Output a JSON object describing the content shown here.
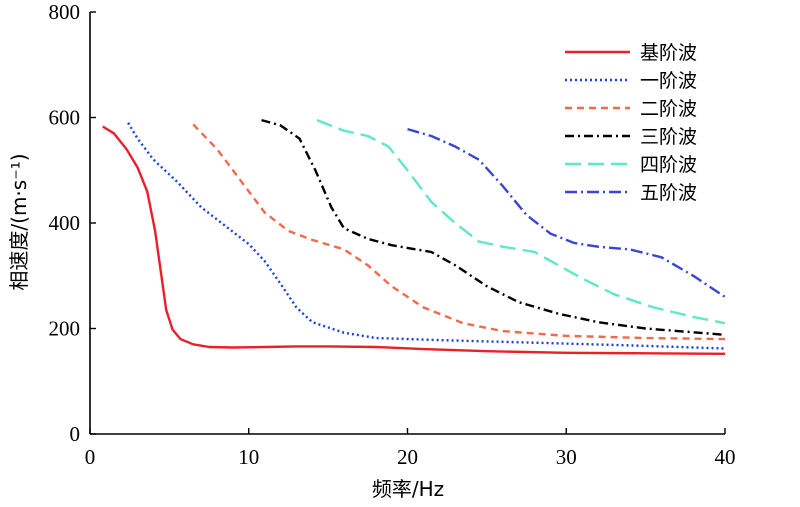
{
  "chart_data": {
    "type": "line",
    "xlabel": "频率/Hz",
    "ylabel": "相速度/(m·s⁻¹)",
    "xlim": [
      0,
      40
    ],
    "ylim": [
      0,
      800
    ],
    "xticks": [
      0,
      10,
      20,
      30,
      40
    ],
    "yticks": [
      0,
      200,
      400,
      600,
      800
    ],
    "grid": false,
    "legend_position": "top-right",
    "series": [
      {
        "name": "基阶波",
        "color": "#e8202a",
        "dash": "solid",
        "points": [
          [
            0.8,
            583
          ],
          [
            1.5,
            570
          ],
          [
            2.3,
            540
          ],
          [
            3.0,
            505
          ],
          [
            3.6,
            460
          ],
          [
            4.1,
            385
          ],
          [
            4.5,
            300
          ],
          [
            4.8,
            235
          ],
          [
            5.2,
            198
          ],
          [
            5.7,
            180
          ],
          [
            6.5,
            170
          ],
          [
            7.5,
            165
          ],
          [
            9,
            164
          ],
          [
            11,
            165
          ],
          [
            13,
            166
          ],
          [
            15,
            166
          ],
          [
            18,
            165
          ],
          [
            21,
            161
          ],
          [
            25,
            157
          ],
          [
            30,
            154
          ],
          [
            35,
            153
          ],
          [
            40,
            152
          ]
        ]
      },
      {
        "name": "一阶波",
        "color": "#1a3fe0",
        "dash": "2,3",
        "points": [
          [
            2.4,
            590
          ],
          [
            3.0,
            560
          ],
          [
            4.0,
            520
          ],
          [
            5.5,
            478
          ],
          [
            7.0,
            430
          ],
          [
            8.5,
            395
          ],
          [
            10.0,
            360
          ],
          [
            11.0,
            328
          ],
          [
            12.0,
            285
          ],
          [
            13.0,
            240
          ],
          [
            14.0,
            212
          ],
          [
            16.0,
            192
          ],
          [
            18.0,
            182
          ],
          [
            22.0,
            178
          ],
          [
            28.0,
            173
          ],
          [
            34.0,
            168
          ],
          [
            40.0,
            162
          ]
        ]
      },
      {
        "name": "二阶波",
        "color": "#ee6b4d",
        "dash": "7,5",
        "points": [
          [
            6.5,
            587
          ],
          [
            8.0,
            540
          ],
          [
            9.5,
            480
          ],
          [
            11.0,
            420
          ],
          [
            12.5,
            385
          ],
          [
            14.0,
            368
          ],
          [
            16.0,
            350
          ],
          [
            17.5,
            320
          ],
          [
            19.0,
            280
          ],
          [
            21.0,
            240
          ],
          [
            23.5,
            210
          ],
          [
            26.0,
            195
          ],
          [
            30.0,
            186
          ],
          [
            35.0,
            182
          ],
          [
            40.0,
            180
          ]
        ]
      },
      {
        "name": "三阶波",
        "color": "#000000",
        "dash": "9,4,2,4",
        "points": [
          [
            10.8,
            595
          ],
          [
            12.0,
            585
          ],
          [
            13.2,
            560
          ],
          [
            14.2,
            500
          ],
          [
            15.2,
            430
          ],
          [
            16.0,
            390
          ],
          [
            17.5,
            370
          ],
          [
            19.0,
            358
          ],
          [
            21.5,
            345
          ],
          [
            23.0,
            320
          ],
          [
            25.0,
            280
          ],
          [
            27.0,
            250
          ],
          [
            29.5,
            228
          ],
          [
            32.0,
            212
          ],
          [
            35.0,
            200
          ],
          [
            40.0,
            188
          ]
        ]
      },
      {
        "name": "四阶波",
        "color": "#5ee8c8",
        "dash": "16,7",
        "points": [
          [
            14.3,
            595
          ],
          [
            16.0,
            575
          ],
          [
            17.5,
            565
          ],
          [
            18.8,
            545
          ],
          [
            20.0,
            500
          ],
          [
            21.5,
            440
          ],
          [
            23.0,
            400
          ],
          [
            24.5,
            365
          ],
          [
            26.0,
            355
          ],
          [
            28.0,
            345
          ],
          [
            29.5,
            320
          ],
          [
            31.0,
            295
          ],
          [
            33.0,
            265
          ],
          [
            35.5,
            240
          ],
          [
            38.0,
            222
          ],
          [
            40.0,
            210
          ]
        ]
      },
      {
        "name": "五阶波",
        "color": "#3a45d8",
        "dash": "12,4,2,4",
        "points": [
          [
            20.0,
            578
          ],
          [
            21.5,
            565
          ],
          [
            23.0,
            545
          ],
          [
            24.5,
            520
          ],
          [
            26.0,
            470
          ],
          [
            27.5,
            415
          ],
          [
            29.0,
            380
          ],
          [
            30.5,
            362
          ],
          [
            32.0,
            355
          ],
          [
            34.0,
            350
          ],
          [
            36.0,
            335
          ],
          [
            38.0,
            300
          ],
          [
            40.0,
            260
          ]
        ]
      }
    ]
  }
}
